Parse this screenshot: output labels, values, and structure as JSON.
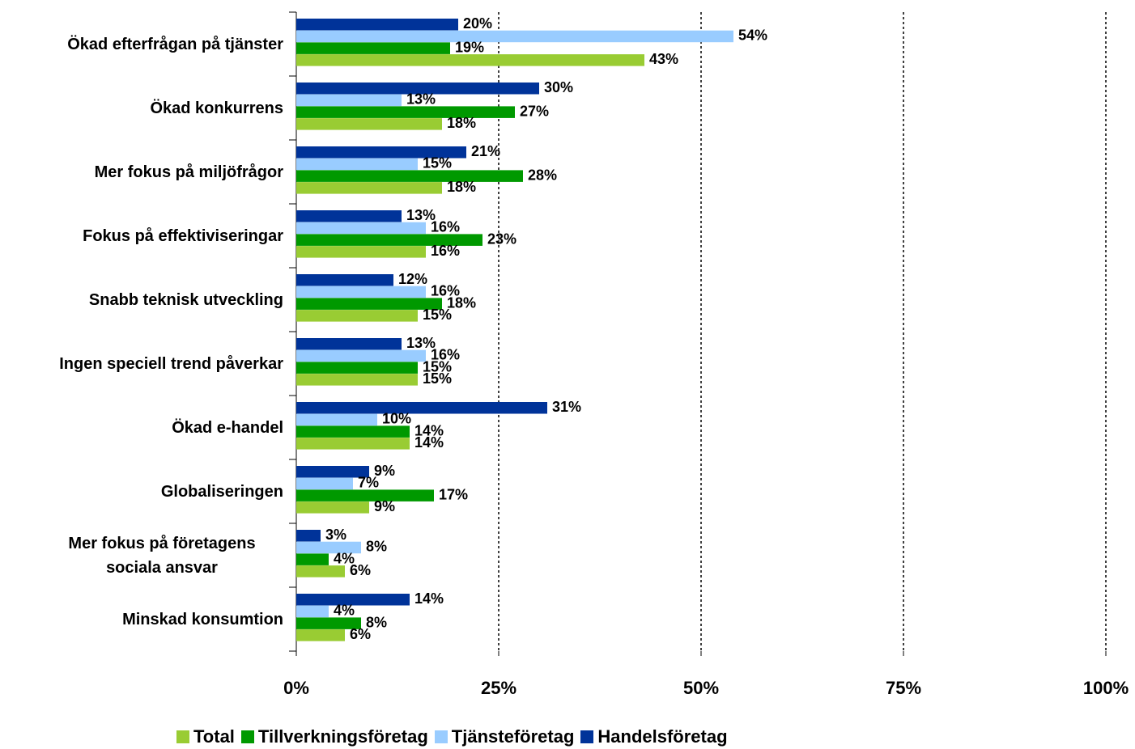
{
  "chart_data": {
    "type": "hbar",
    "categories": [
      "Ökad efterfrågan på tjänster",
      "Ökad konkurrens",
      "Mer fokus på miljöfrågor",
      "Fokus på effektiviseringar",
      "Snabb teknisk utveckling",
      "Ingen speciell trend påverkar",
      "Ökad e-handel",
      "Globaliseringen",
      "Mer fokus på företagens sociala ansvar",
      "Minskad konsumtion"
    ],
    "series": [
      {
        "name": "Handelsföretag",
        "color": "#003399",
        "values": [
          20,
          30,
          21,
          13,
          12,
          13,
          31,
          9,
          3,
          14
        ],
        "value_labels": [
          "20%",
          "30%",
          "21%",
          "13%",
          "12%",
          "13%",
          "31%",
          "9%",
          "3%",
          "14%"
        ]
      },
      {
        "name": "Tjänsteföretag",
        "color": "#99ccff",
        "values": [
          54,
          13,
          15,
          16,
          16,
          16,
          10,
          7,
          8,
          4
        ],
        "value_labels": [
          "54%",
          "13%",
          "15%",
          "16%",
          "16%",
          "16%",
          "10%",
          "7%",
          "8%",
          "4%"
        ]
      },
      {
        "name": "Tillverkningsföretag",
        "color": "#009900",
        "values": [
          19,
          27,
          28,
          23,
          18,
          15,
          14,
          17,
          4,
          8
        ],
        "value_labels": [
          "19%",
          "27%",
          "28%",
          "23%",
          "18%",
          "15%",
          "14%",
          "17%",
          "4%",
          "8%"
        ]
      },
      {
        "name": "Total",
        "color": "#99cc33",
        "values": [
          43,
          18,
          18,
          16,
          15,
          15,
          14,
          9,
          6,
          6
        ],
        "value_labels": [
          "43%",
          "18%",
          "18%",
          "16%",
          "15%",
          "15%",
          "14%",
          "9%",
          "6%",
          "6%"
        ]
      }
    ],
    "xlim": [
      0,
      100
    ],
    "xticks": [
      {
        "value": 0,
        "label": "0%"
      },
      {
        "value": 25,
        "label": "25%"
      },
      {
        "value": 50,
        "label": "50%"
      },
      {
        "value": 75,
        "label": "75%"
      },
      {
        "value": 100,
        "label": "100%"
      }
    ],
    "grid": true
  }
}
